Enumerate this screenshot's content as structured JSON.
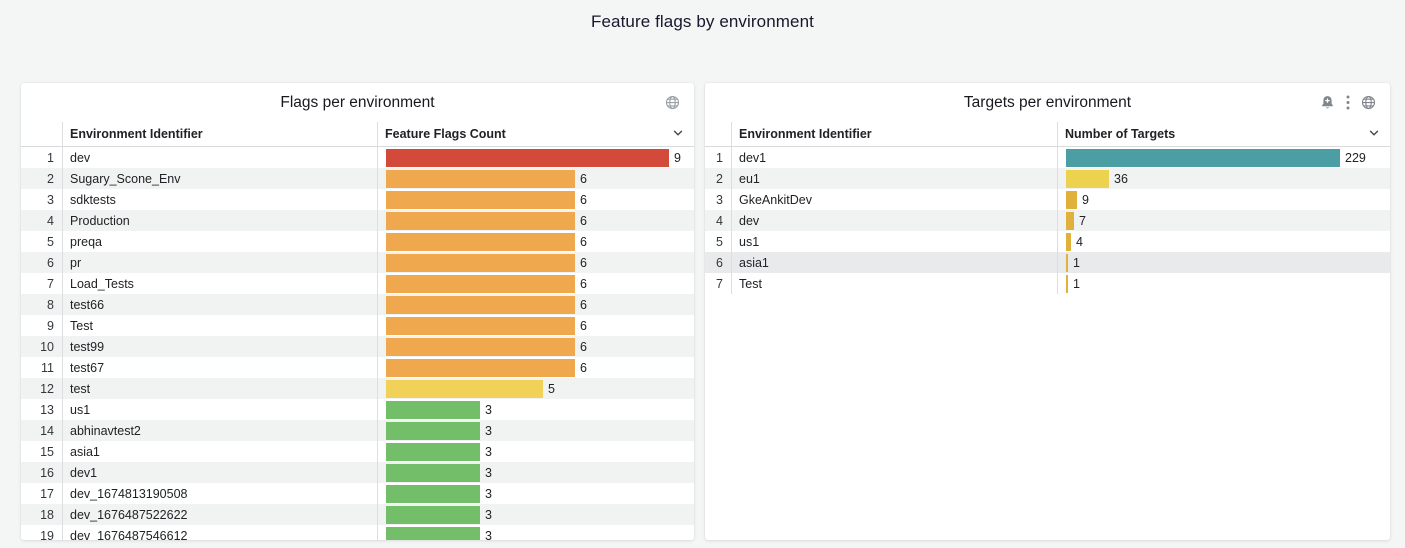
{
  "page": {
    "title": "Feature flags by environment",
    "background_color": "#f4f5f5"
  },
  "colors": {
    "red": "#d44a3a",
    "orange": "#f0a84e",
    "yellow": "#f2d158",
    "green": "#73bf69",
    "teal": "#4a9ea4",
    "bright_yellow": "#ecd24f",
    "gold": "#e0b13d",
    "icon_gray": "#81868d",
    "header_line": "#d8dadc"
  },
  "panels": [
    {
      "title": "Flags per environment",
      "icons": [
        "globe"
      ],
      "sort_icon": "chevron-down",
      "columns": {
        "identifier": "Environment Identifier",
        "value": "Feature Flags Count"
      },
      "max_value": 9,
      "rows": [
        {
          "n": 1,
          "label": "dev",
          "value": 9,
          "color": "#d44a3a"
        },
        {
          "n": 2,
          "label": "Sugary_Scone_Env",
          "value": 6,
          "color": "#f0a84e"
        },
        {
          "n": 3,
          "label": "sdktests",
          "value": 6,
          "color": "#f0a84e"
        },
        {
          "n": 4,
          "label": "Production",
          "value": 6,
          "color": "#f0a84e"
        },
        {
          "n": 5,
          "label": "preqa",
          "value": 6,
          "color": "#f0a84e"
        },
        {
          "n": 6,
          "label": "pr",
          "value": 6,
          "color": "#f0a84e"
        },
        {
          "n": 7,
          "label": "Load_Tests",
          "value": 6,
          "color": "#f0a84e"
        },
        {
          "n": 8,
          "label": "test66",
          "value": 6,
          "color": "#f0a84e"
        },
        {
          "n": 9,
          "label": "Test",
          "value": 6,
          "color": "#f0a84e"
        },
        {
          "n": 10,
          "label": "test99",
          "value": 6,
          "color": "#f0a84e"
        },
        {
          "n": 11,
          "label": "test67",
          "value": 6,
          "color": "#f0a84e"
        },
        {
          "n": 12,
          "label": "test",
          "value": 5,
          "color": "#f2d158"
        },
        {
          "n": 13,
          "label": "us1",
          "value": 3,
          "color": "#73bf69"
        },
        {
          "n": 14,
          "label": "abhinavtest2",
          "value": 3,
          "color": "#73bf69"
        },
        {
          "n": 15,
          "label": "asia1",
          "value": 3,
          "color": "#73bf69"
        },
        {
          "n": 16,
          "label": "dev1",
          "value": 3,
          "color": "#73bf69"
        },
        {
          "n": 17,
          "label": "dev_1674813190508",
          "value": 3,
          "color": "#73bf69"
        },
        {
          "n": 18,
          "label": "dev_1676487522622",
          "value": 3,
          "color": "#73bf69"
        },
        {
          "n": 19,
          "label": "dev_1676487546612",
          "value": 3,
          "color": "#73bf69"
        }
      ]
    },
    {
      "title": "Targets per environment",
      "icons": [
        "bell-plus",
        "kebab-menu",
        "globe"
      ],
      "sort_icon": "chevron-down",
      "columns": {
        "identifier": "Environment Identifier",
        "value": "Number of Targets"
      },
      "max_value": 229,
      "rows": [
        {
          "n": 1,
          "label": "dev1",
          "value": 229,
          "color": "#4a9ea4"
        },
        {
          "n": 2,
          "label": "eu1",
          "value": 36,
          "color": "#ecd24f"
        },
        {
          "n": 3,
          "label": "GkeAnkitDev",
          "value": 9,
          "color": "#e0b13d"
        },
        {
          "n": 4,
          "label": "dev",
          "value": 7,
          "color": "#e0b13d"
        },
        {
          "n": 5,
          "label": "us1",
          "value": 4,
          "color": "#e0b13d"
        },
        {
          "n": 6,
          "label": "asia1",
          "value": 1,
          "color": "#e0b13d",
          "highlighted": true
        },
        {
          "n": 7,
          "label": "Test",
          "value": 1,
          "color": "#e0b13d"
        }
      ]
    }
  ],
  "chart_data": [
    {
      "type": "bar",
      "orientation": "horizontal",
      "title": "Flags per environment",
      "xlabel": "Feature Flags Count",
      "categories": [
        "dev",
        "Sugary_Scone_Env",
        "sdktests",
        "Production",
        "preqa",
        "pr",
        "Load_Tests",
        "test66",
        "Test",
        "test99",
        "test67",
        "test",
        "us1",
        "abhinavtest2",
        "asia1",
        "dev1",
        "dev_1674813190508",
        "dev_1676487522622",
        "dev_1676487546612"
      ],
      "values": [
        9,
        6,
        6,
        6,
        6,
        6,
        6,
        6,
        6,
        6,
        6,
        5,
        3,
        3,
        3,
        3,
        3,
        3,
        3
      ],
      "xlim": [
        0,
        9
      ],
      "grid": false,
      "legend": false
    },
    {
      "type": "bar",
      "orientation": "horizontal",
      "title": "Targets per environment",
      "xlabel": "Number of Targets",
      "categories": [
        "dev1",
        "eu1",
        "GkeAnkitDev",
        "dev",
        "us1",
        "asia1",
        "Test"
      ],
      "values": [
        229,
        36,
        9,
        7,
        4,
        1,
        1
      ],
      "xlim": [
        0,
        229
      ],
      "grid": false,
      "legend": false
    }
  ]
}
